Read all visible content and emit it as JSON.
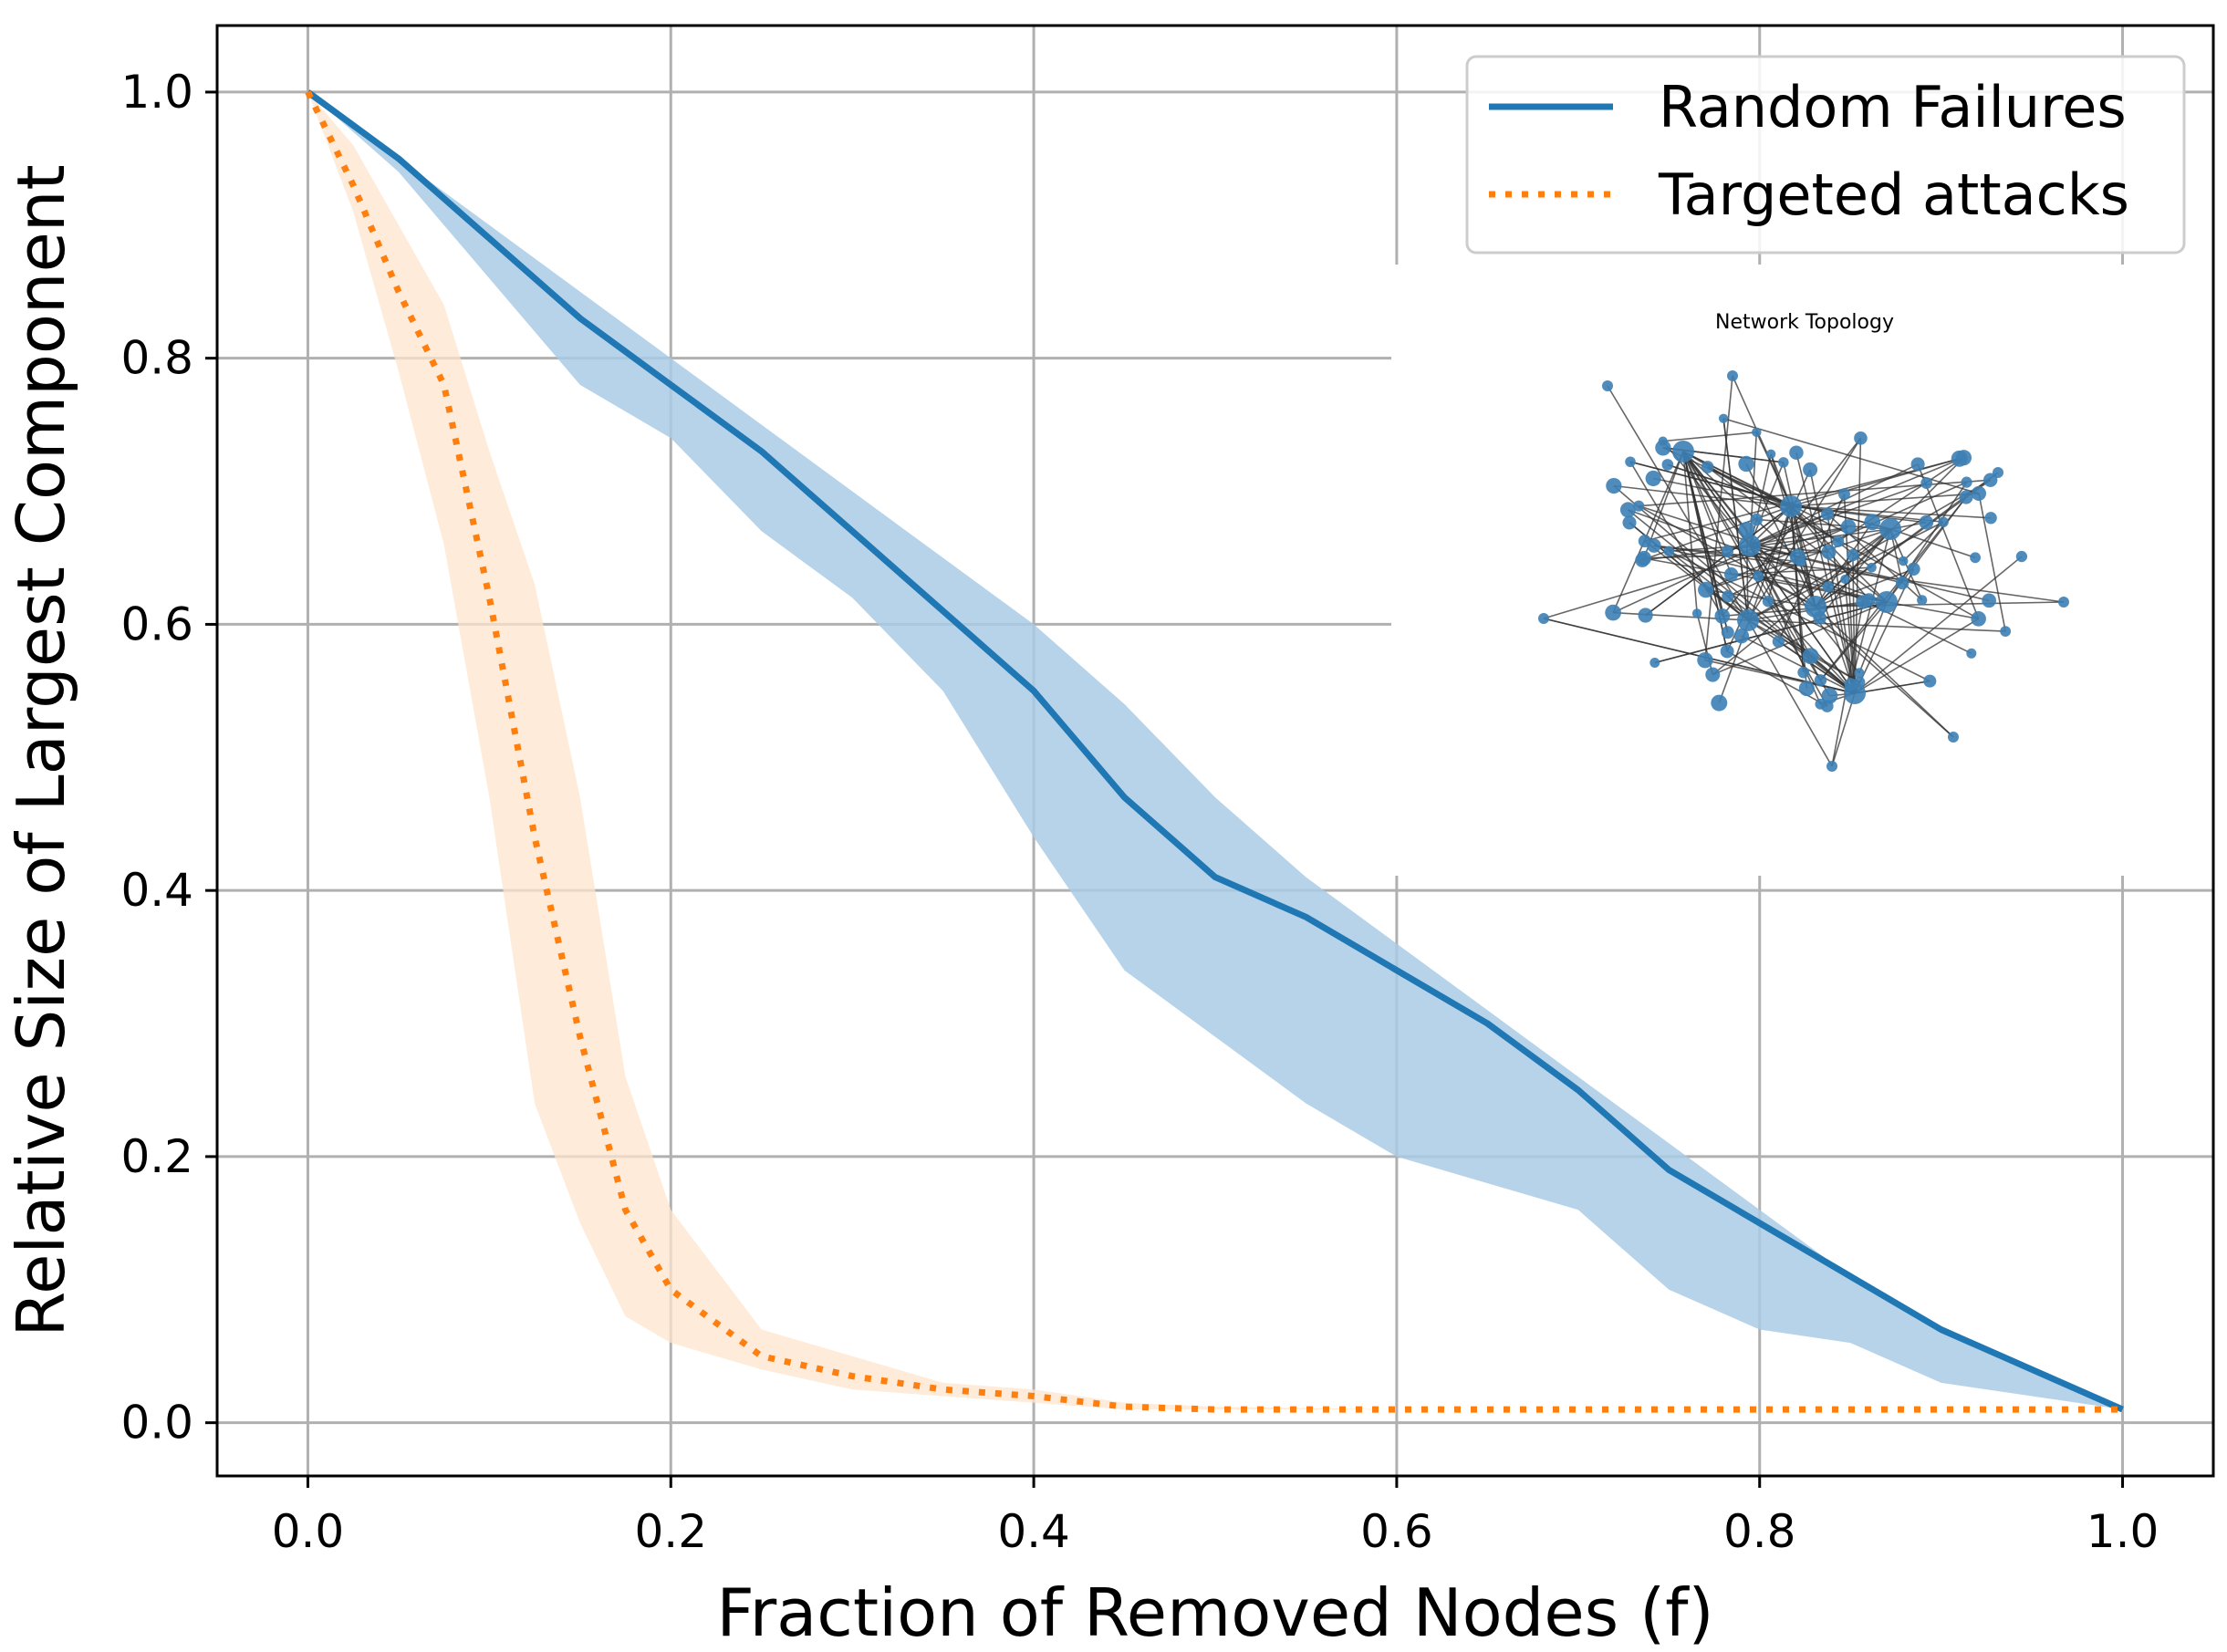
{
  "chart_data": {
    "type": "line",
    "title": "",
    "xlabel": "Fraction of Removed Nodes (f)",
    "ylabel": "Relative Size of Largest Component",
    "xlim": [
      -0.05,
      1.05
    ],
    "ylim": [
      -0.04,
      1.05
    ],
    "xticks": [
      0.0,
      0.2,
      0.4,
      0.6,
      0.8,
      1.0
    ],
    "yticks": [
      0.0,
      0.2,
      0.4,
      0.6,
      0.8,
      1.0
    ],
    "xtick_labels": [
      "0.0",
      "0.2",
      "0.4",
      "0.6",
      "0.8",
      "1.0"
    ],
    "ytick_labels": [
      "0.0",
      "0.2",
      "0.4",
      "0.6",
      "0.8",
      "1.0"
    ],
    "grid": true,
    "legend_position": "top-right",
    "series": [
      {
        "name": "Random Failures",
        "style": "solid",
        "color": "#1f77b4",
        "band_color": "#a9cbe5",
        "x": [
          0.0,
          0.05,
          0.1,
          0.15,
          0.2,
          0.25,
          0.3,
          0.35,
          0.4,
          0.45,
          0.5,
          0.55,
          0.6,
          0.65,
          0.7,
          0.75,
          0.8,
          0.85,
          0.9,
          0.95,
          1.0
        ],
        "y": [
          1.0,
          0.95,
          0.89,
          0.83,
          0.78,
          0.73,
          0.67,
          0.61,
          0.55,
          0.47,
          0.41,
          0.38,
          0.34,
          0.3,
          0.25,
          0.19,
          0.15,
          0.11,
          0.07,
          0.04,
          0.01
        ],
        "lower": [
          1.0,
          0.94,
          0.86,
          0.78,
          0.74,
          0.67,
          0.62,
          0.55,
          0.44,
          0.34,
          0.29,
          0.24,
          0.2,
          0.18,
          0.16,
          0.1,
          0.07,
          0.06,
          0.03,
          0.02,
          0.01
        ],
        "upper": [
          1.0,
          0.95,
          0.9,
          0.85,
          0.8,
          0.75,
          0.7,
          0.65,
          0.6,
          0.54,
          0.47,
          0.41,
          0.36,
          0.31,
          0.26,
          0.21,
          0.16,
          0.11,
          0.07,
          0.04,
          0.01
        ]
      },
      {
        "name": "Targeted attacks",
        "style": "dotted",
        "color": "#ff7f0e",
        "band_color": "#fde4cc",
        "x": [
          0.0,
          0.025,
          0.05,
          0.075,
          0.1,
          0.125,
          0.15,
          0.175,
          0.2,
          0.25,
          0.3,
          0.35,
          0.4,
          0.45,
          0.5,
          0.6,
          0.7,
          0.8,
          0.9,
          1.0
        ],
        "y": [
          1.0,
          0.93,
          0.85,
          0.78,
          0.62,
          0.44,
          0.29,
          0.16,
          0.1,
          0.05,
          0.035,
          0.025,
          0.02,
          0.012,
          0.01,
          0.01,
          0.01,
          0.01,
          0.01,
          0.01
        ],
        "lower": [
          1.0,
          0.91,
          0.79,
          0.66,
          0.47,
          0.24,
          0.15,
          0.08,
          0.06,
          0.04,
          0.025,
          0.02,
          0.015,
          0.01,
          0.01,
          0.01,
          0.01,
          0.01,
          0.01,
          0.01
        ],
        "upper": [
          1.0,
          0.96,
          0.9,
          0.84,
          0.73,
          0.63,
          0.47,
          0.26,
          0.16,
          0.07,
          0.05,
          0.03,
          0.025,
          0.015,
          0.012,
          0.01,
          0.01,
          0.01,
          0.01,
          0.01
        ]
      }
    ],
    "inset": {
      "title": "Network Topology",
      "node_color": "#3d7fb4",
      "edge_color": "#333333"
    }
  }
}
